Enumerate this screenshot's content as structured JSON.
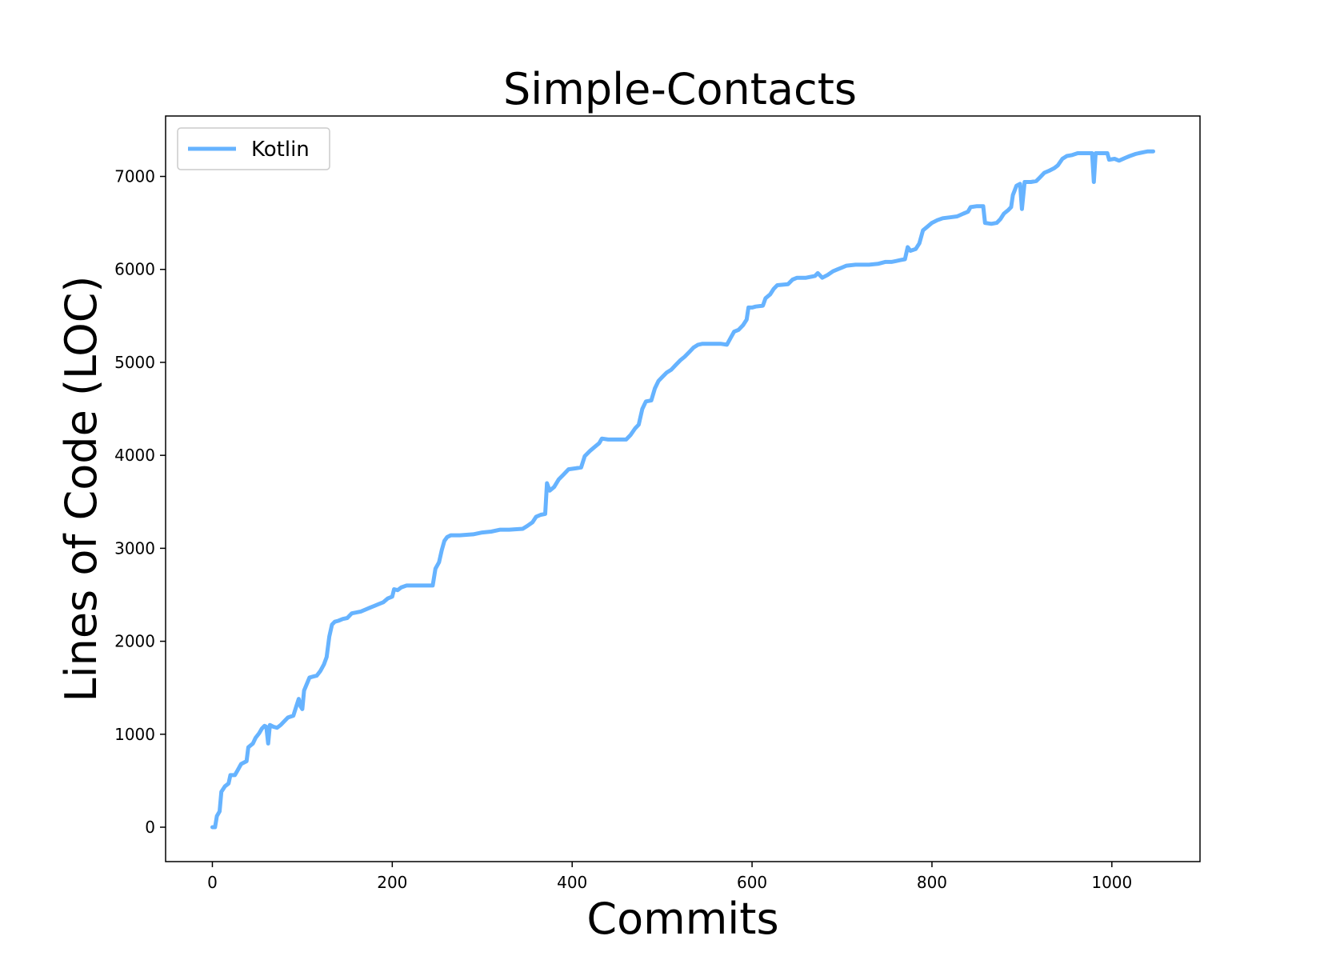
{
  "chart_data": {
    "type": "line",
    "title": "Simple-Contacts",
    "xlabel": "Commits",
    "ylabel": "Lines of Code (LOC)",
    "xlim": [
      -52,
      1098
    ],
    "ylim": [
      -370,
      7650
    ],
    "xticks": [
      0,
      200,
      400,
      600,
      800,
      1000
    ],
    "yticks": [
      0,
      1000,
      2000,
      3000,
      4000,
      5000,
      6000,
      7000
    ],
    "xtick_labels": [
      "0",
      "200",
      "400",
      "600",
      "800",
      "1000"
    ],
    "ytick_labels": [
      "0",
      "1000",
      "2000",
      "3000",
      "4000",
      "5000",
      "6000",
      "7000"
    ],
    "grid": false,
    "legend_position": "top-left",
    "series": [
      {
        "name": "Kotlin",
        "color": "#66b3ff",
        "points": [
          [
            0,
            0
          ],
          [
            3,
            0
          ],
          [
            5,
            120
          ],
          [
            8,
            170
          ],
          [
            10,
            380
          ],
          [
            14,
            440
          ],
          [
            18,
            470
          ],
          [
            20,
            560
          ],
          [
            25,
            560
          ],
          [
            28,
            610
          ],
          [
            32,
            680
          ],
          [
            38,
            710
          ],
          [
            40,
            860
          ],
          [
            45,
            900
          ],
          [
            48,
            960
          ],
          [
            52,
            1010
          ],
          [
            55,
            1060
          ],
          [
            58,
            1090
          ],
          [
            60,
            1080
          ],
          [
            62,
            900
          ],
          [
            64,
            1100
          ],
          [
            68,
            1080
          ],
          [
            72,
            1070
          ],
          [
            76,
            1100
          ],
          [
            80,
            1140
          ],
          [
            84,
            1180
          ],
          [
            90,
            1200
          ],
          [
            93,
            1290
          ],
          [
            96,
            1380
          ],
          [
            98,
            1300
          ],
          [
            100,
            1270
          ],
          [
            102,
            1470
          ],
          [
            105,
            1540
          ],
          [
            108,
            1610
          ],
          [
            112,
            1620
          ],
          [
            116,
            1630
          ],
          [
            120,
            1680
          ],
          [
            124,
            1750
          ],
          [
            127,
            1830
          ],
          [
            130,
            2050
          ],
          [
            133,
            2180
          ],
          [
            136,
            2210
          ],
          [
            140,
            2220
          ],
          [
            145,
            2240
          ],
          [
            150,
            2250
          ],
          [
            155,
            2300
          ],
          [
            160,
            2310
          ],
          [
            165,
            2320
          ],
          [
            170,
            2340
          ],
          [
            175,
            2360
          ],
          [
            180,
            2380
          ],
          [
            185,
            2400
          ],
          [
            190,
            2420
          ],
          [
            195,
            2460
          ],
          [
            200,
            2480
          ],
          [
            202,
            2560
          ],
          [
            206,
            2550
          ],
          [
            210,
            2580
          ],
          [
            216,
            2600
          ],
          [
            225,
            2600
          ],
          [
            235,
            2600
          ],
          [
            245,
            2600
          ],
          [
            248,
            2780
          ],
          [
            252,
            2850
          ],
          [
            255,
            2980
          ],
          [
            258,
            3080
          ],
          [
            261,
            3120
          ],
          [
            265,
            3140
          ],
          [
            275,
            3140
          ],
          [
            290,
            3150
          ],
          [
            300,
            3170
          ],
          [
            310,
            3180
          ],
          [
            320,
            3200
          ],
          [
            330,
            3200
          ],
          [
            345,
            3210
          ],
          [
            350,
            3240
          ],
          [
            356,
            3280
          ],
          [
            360,
            3340
          ],
          [
            365,
            3360
          ],
          [
            370,
            3370
          ],
          [
            372,
            3700
          ],
          [
            375,
            3620
          ],
          [
            380,
            3660
          ],
          [
            385,
            3740
          ],
          [
            390,
            3790
          ],
          [
            396,
            3850
          ],
          [
            404,
            3860
          ],
          [
            410,
            3870
          ],
          [
            414,
            3990
          ],
          [
            420,
            4050
          ],
          [
            425,
            4090
          ],
          [
            430,
            4130
          ],
          [
            433,
            4180
          ],
          [
            440,
            4170
          ],
          [
            450,
            4170
          ],
          [
            460,
            4170
          ],
          [
            465,
            4220
          ],
          [
            470,
            4290
          ],
          [
            474,
            4330
          ],
          [
            478,
            4500
          ],
          [
            482,
            4580
          ],
          [
            488,
            4590
          ],
          [
            492,
            4720
          ],
          [
            496,
            4800
          ],
          [
            500,
            4840
          ],
          [
            505,
            4890
          ],
          [
            510,
            4920
          ],
          [
            515,
            4970
          ],
          [
            520,
            5020
          ],
          [
            525,
            5060
          ],
          [
            530,
            5110
          ],
          [
            535,
            5160
          ],
          [
            540,
            5190
          ],
          [
            545,
            5200
          ],
          [
            555,
            5200
          ],
          [
            565,
            5200
          ],
          [
            572,
            5190
          ],
          [
            576,
            5260
          ],
          [
            580,
            5330
          ],
          [
            585,
            5350
          ],
          [
            590,
            5400
          ],
          [
            594,
            5460
          ],
          [
            596,
            5590
          ],
          [
            600,
            5590
          ],
          [
            604,
            5600
          ],
          [
            612,
            5610
          ],
          [
            615,
            5690
          ],
          [
            620,
            5730
          ],
          [
            624,
            5790
          ],
          [
            628,
            5830
          ],
          [
            640,
            5840
          ],
          [
            645,
            5890
          ],
          [
            650,
            5910
          ],
          [
            660,
            5910
          ],
          [
            670,
            5930
          ],
          [
            673,
            5960
          ],
          [
            678,
            5910
          ],
          [
            684,
            5940
          ],
          [
            690,
            5980
          ],
          [
            695,
            6000
          ],
          [
            700,
            6020
          ],
          [
            705,
            6040
          ],
          [
            715,
            6050
          ],
          [
            730,
            6050
          ],
          [
            740,
            6060
          ],
          [
            748,
            6080
          ],
          [
            755,
            6080
          ],
          [
            760,
            6090
          ],
          [
            765,
            6100
          ],
          [
            770,
            6110
          ],
          [
            773,
            6240
          ],
          [
            776,
            6200
          ],
          [
            782,
            6220
          ],
          [
            786,
            6280
          ],
          [
            790,
            6420
          ],
          [
            795,
            6460
          ],
          [
            800,
            6500
          ],
          [
            806,
            6530
          ],
          [
            812,
            6550
          ],
          [
            820,
            6560
          ],
          [
            828,
            6570
          ],
          [
            835,
            6600
          ],
          [
            840,
            6620
          ],
          [
            843,
            6670
          ],
          [
            850,
            6680
          ],
          [
            857,
            6680
          ],
          [
            859,
            6500
          ],
          [
            866,
            6490
          ],
          [
            872,
            6500
          ],
          [
            876,
            6540
          ],
          [
            880,
            6600
          ],
          [
            885,
            6640
          ],
          [
            888,
            6670
          ],
          [
            890,
            6800
          ],
          [
            894,
            6900
          ],
          [
            898,
            6920
          ],
          [
            900,
            6650
          ],
          [
            903,
            6940
          ],
          [
            910,
            6940
          ],
          [
            916,
            6950
          ],
          [
            920,
            6990
          ],
          [
            925,
            7040
          ],
          [
            930,
            7060
          ],
          [
            936,
            7090
          ],
          [
            940,
            7120
          ],
          [
            945,
            7190
          ],
          [
            950,
            7220
          ],
          [
            956,
            7230
          ],
          [
            962,
            7250
          ],
          [
            970,
            7250
          ],
          [
            978,
            7250
          ],
          [
            980,
            6940
          ],
          [
            982,
            7250
          ],
          [
            990,
            7250
          ],
          [
            995,
            7250
          ],
          [
            997,
            7180
          ],
          [
            1003,
            7190
          ],
          [
            1008,
            7170
          ],
          [
            1015,
            7200
          ],
          [
            1020,
            7220
          ],
          [
            1026,
            7240
          ],
          [
            1030,
            7250
          ],
          [
            1035,
            7260
          ],
          [
            1040,
            7270
          ],
          [
            1046,
            7270
          ]
        ]
      }
    ]
  }
}
